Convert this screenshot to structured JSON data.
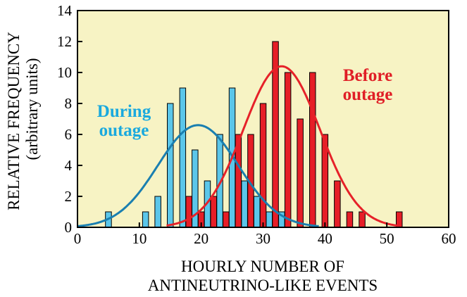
{
  "chart_data": {
    "type": "bar",
    "title": "",
    "xlabel_line1": "HOURLY NUMBER OF",
    "xlabel_line2": "ANTINEUTRINO-LIKE EVENTS",
    "ylabel_line1": "RELATIVE FREQUENCY",
    "ylabel_line2": "(arbitrary units)",
    "xlim": [
      0,
      60
    ],
    "ylim": [
      0,
      14
    ],
    "xticks": [
      0,
      10,
      20,
      30,
      40,
      50,
      60
    ],
    "yticks": [
      0,
      2,
      4,
      6,
      8,
      10,
      12,
      14
    ],
    "background": "#f7f3c4",
    "series": [
      {
        "name": "During outage",
        "label_line1": "During",
        "label_line2": "outage",
        "color": "#5bc6ea",
        "line_color": "#1a7fb0",
        "text_color": "#1aa9de",
        "bins": [
          {
            "x": 5,
            "value": 1
          },
          {
            "x": 11,
            "value": 1
          },
          {
            "x": 13,
            "value": 2
          },
          {
            "x": 15,
            "value": 8
          },
          {
            "x": 17,
            "value": 9
          },
          {
            "x": 19,
            "value": 5
          },
          {
            "x": 21,
            "value": 3
          },
          {
            "x": 23,
            "value": 6
          },
          {
            "x": 25,
            "value": 9
          },
          {
            "x": 27,
            "value": 3
          },
          {
            "x": 29,
            "value": 2
          },
          {
            "x": 31,
            "value": 1
          },
          {
            "x": 33,
            "value": 1
          }
        ],
        "fit": {
          "mean": 19.5,
          "sigma": 6.5,
          "peak": 6.6
        }
      },
      {
        "name": "Before outage",
        "label_line1": "Before",
        "label_line2": "outage",
        "color": "#e61e27",
        "line_color": "#e62129",
        "text_color": "#e01e26",
        "bins": [
          {
            "x": 18,
            "value": 2
          },
          {
            "x": 20,
            "value": 1
          },
          {
            "x": 22,
            "value": 2
          },
          {
            "x": 24,
            "value": 1
          },
          {
            "x": 26,
            "value": 6
          },
          {
            "x": 28,
            "value": 6
          },
          {
            "x": 30,
            "value": 8
          },
          {
            "x": 32,
            "value": 12
          },
          {
            "x": 34,
            "value": 10
          },
          {
            "x": 36,
            "value": 7
          },
          {
            "x": 38,
            "value": 10
          },
          {
            "x": 40,
            "value": 6
          },
          {
            "x": 42,
            "value": 3
          },
          {
            "x": 44,
            "value": 1
          },
          {
            "x": 46,
            "value": 1
          },
          {
            "x": 52,
            "value": 1
          }
        ],
        "fit": {
          "mean": 33.0,
          "sigma": 6.2,
          "peak": 10.4
        }
      }
    ]
  }
}
